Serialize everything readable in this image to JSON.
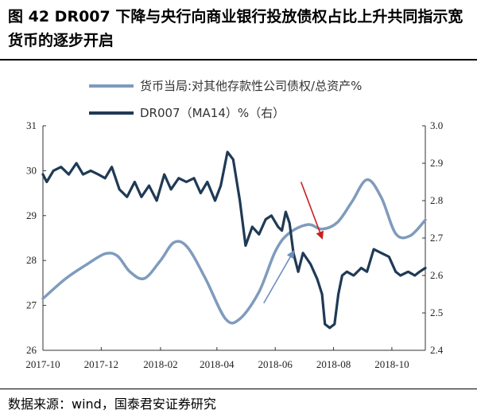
{
  "title": "图 42 DR007 下降与央行向商业银行投放债权占比上升共同指示宽货币的逐步开启",
  "source": "数据来源：wind，国泰君安证券研究",
  "chart_data": {
    "type": "line",
    "title": "图 42 DR007 下降与央行向商业银行投放债权占比上升共同指示宽货币的逐步开启",
    "x_ticks": [
      "2017-10",
      "2017-12",
      "2018-02",
      "2018-04",
      "2018-06",
      "2018-08",
      "2018-10"
    ],
    "x_range": [
      "2017-10-01",
      "2018-11-05"
    ],
    "y_left": {
      "min": 26,
      "max": 31,
      "ticks": [
        "26",
        "27",
        "28",
        "29",
        "30",
        "31"
      ]
    },
    "y_right": {
      "min": 2.4,
      "max": 3.0,
      "ticks": [
        "2.4",
        "2.5",
        "2.6",
        "2.7",
        "2.8",
        "2.9",
        "3.0"
      ]
    },
    "legend_position": "top",
    "series": [
      {
        "name": "货币当局:对其他存款性公司债权/总资产%",
        "axis": "left",
        "color": "#7f9bbd",
        "points": [
          [
            "2017-10-01",
            27.15
          ],
          [
            "2017-10-25",
            27.6
          ],
          [
            "2017-11-15",
            27.9
          ],
          [
            "2017-12-05",
            28.15
          ],
          [
            "2017-12-18",
            28.1
          ],
          [
            "2017-12-31",
            27.75
          ],
          [
            "2018-01-15",
            27.6
          ],
          [
            "2018-02-01",
            28.0
          ],
          [
            "2018-02-15",
            28.4
          ],
          [
            "2018-03-01",
            28.3
          ],
          [
            "2018-03-20",
            27.6
          ],
          [
            "2018-04-10",
            26.7
          ],
          [
            "2018-04-25",
            26.7
          ],
          [
            "2018-05-15",
            27.3
          ],
          [
            "2018-06-01",
            28.2
          ],
          [
            "2018-06-15",
            28.6
          ],
          [
            "2018-07-05",
            28.8
          ],
          [
            "2018-07-20",
            28.7
          ],
          [
            "2018-08-05",
            28.85
          ],
          [
            "2018-08-20",
            29.3
          ],
          [
            "2018-09-05",
            29.8
          ],
          [
            "2018-09-20",
            29.4
          ],
          [
            "2018-10-05",
            28.6
          ],
          [
            "2018-10-20",
            28.55
          ],
          [
            "2018-11-05",
            28.9
          ]
        ]
      },
      {
        "name": "DR007（MA14）%（右）",
        "axis": "right",
        "color": "#1f3a55",
        "points": [
          [
            "2017-10-01",
            2.87
          ],
          [
            "2017-10-05",
            2.85
          ],
          [
            "2017-10-12",
            2.88
          ],
          [
            "2017-10-20",
            2.89
          ],
          [
            "2017-10-28",
            2.87
          ],
          [
            "2017-11-05",
            2.9
          ],
          [
            "2017-11-12",
            2.87
          ],
          [
            "2017-11-20",
            2.88
          ],
          [
            "2017-11-28",
            2.87
          ],
          [
            "2017-12-05",
            2.86
          ],
          [
            "2017-12-12",
            2.89
          ],
          [
            "2017-12-20",
            2.83
          ],
          [
            "2017-12-28",
            2.81
          ],
          [
            "2018-01-05",
            2.85
          ],
          [
            "2018-01-12",
            2.81
          ],
          [
            "2018-01-20",
            2.84
          ],
          [
            "2018-01-28",
            2.8
          ],
          [
            "2018-02-05",
            2.87
          ],
          [
            "2018-02-12",
            2.83
          ],
          [
            "2018-02-20",
            2.86
          ],
          [
            "2018-02-28",
            2.85
          ],
          [
            "2018-03-08",
            2.86
          ],
          [
            "2018-03-15",
            2.82
          ],
          [
            "2018-03-22",
            2.85
          ],
          [
            "2018-03-30",
            2.8
          ],
          [
            "2018-04-05",
            2.84
          ],
          [
            "2018-04-12",
            2.93
          ],
          [
            "2018-04-18",
            2.91
          ],
          [
            "2018-04-25",
            2.8
          ],
          [
            "2018-05-01",
            2.68
          ],
          [
            "2018-05-08",
            2.73
          ],
          [
            "2018-05-15",
            2.71
          ],
          [
            "2018-05-22",
            2.75
          ],
          [
            "2018-05-28",
            2.76
          ],
          [
            "2018-06-04",
            2.73
          ],
          [
            "2018-06-08",
            2.72
          ],
          [
            "2018-06-12",
            2.77
          ],
          [
            "2018-06-16",
            2.74
          ],
          [
            "2018-06-20",
            2.66
          ],
          [
            "2018-06-25",
            2.61
          ],
          [
            "2018-06-30",
            2.66
          ],
          [
            "2018-07-08",
            2.63
          ],
          [
            "2018-07-15",
            2.59
          ],
          [
            "2018-07-20",
            2.55
          ],
          [
            "2018-07-23",
            2.47
          ],
          [
            "2018-07-28",
            2.46
          ],
          [
            "2018-08-02",
            2.47
          ],
          [
            "2018-08-06",
            2.55
          ],
          [
            "2018-08-10",
            2.6
          ],
          [
            "2018-08-15",
            2.61
          ],
          [
            "2018-08-22",
            2.6
          ],
          [
            "2018-08-30",
            2.62
          ],
          [
            "2018-09-05",
            2.61
          ],
          [
            "2018-09-12",
            2.67
          ],
          [
            "2018-09-20",
            2.66
          ],
          [
            "2018-09-28",
            2.65
          ],
          [
            "2018-10-05",
            2.61
          ],
          [
            "2018-10-10",
            2.6
          ],
          [
            "2018-10-18",
            2.61
          ],
          [
            "2018-10-25",
            2.6
          ],
          [
            "2018-10-30",
            2.61
          ],
          [
            "2018-11-05",
            2.62
          ]
        ]
      }
    ],
    "annotations": [
      {
        "type": "arrow",
        "color": "#c91f1f",
        "from": [
          "2018-06-28",
          2.85
        ],
        "to": [
          "2018-07-20",
          2.7
        ],
        "axis": "right"
      },
      {
        "type": "arrow",
        "color": "#6d8fbf",
        "from": [
          "2018-05-20",
          27.05
        ],
        "to": [
          "2018-06-20",
          28.2
        ],
        "axis": "left"
      }
    ]
  }
}
